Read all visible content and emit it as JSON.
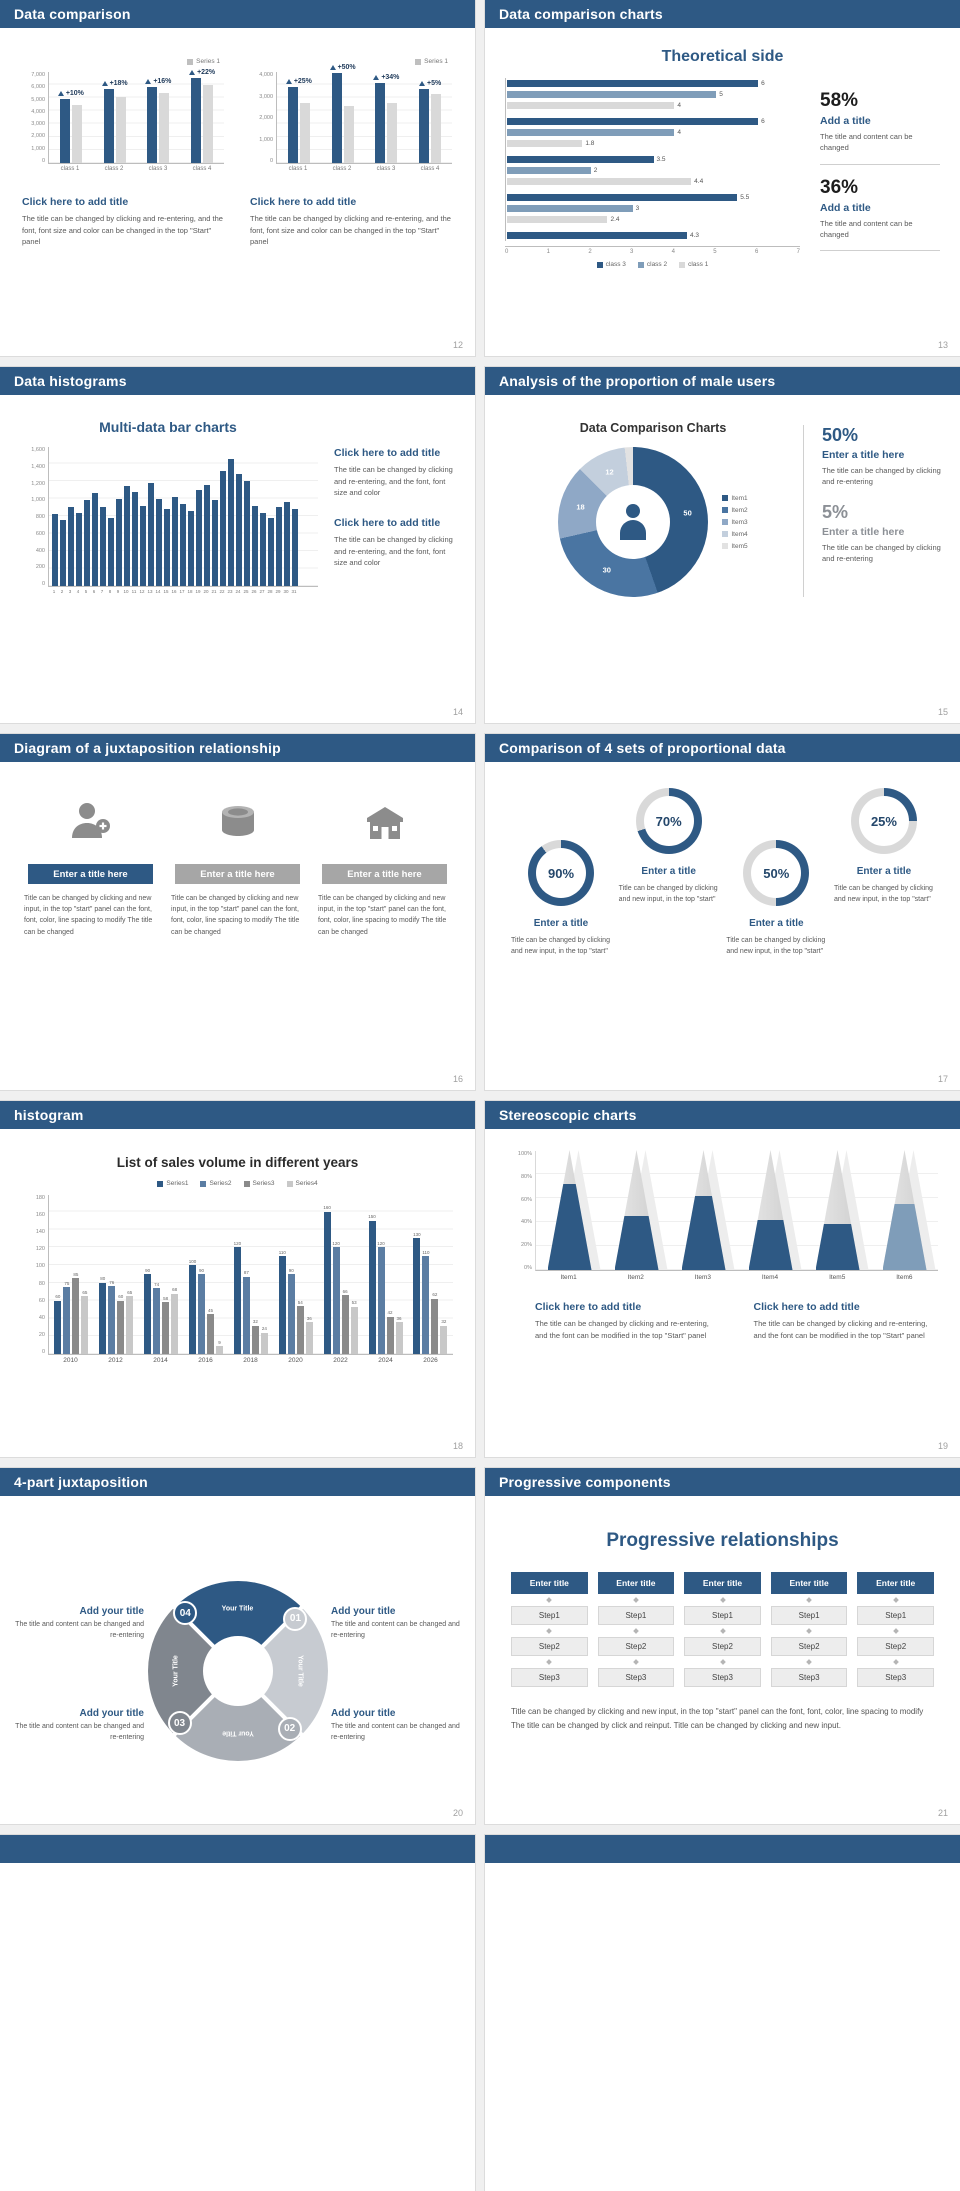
{
  "colors": {
    "navy": "#2e5984",
    "mid_blue": "#7f9db9",
    "gray_bar": "#d9d9d9"
  },
  "slides": {
    "s12": {
      "title": "Data comparison",
      "page_num": "12",
      "charts": [
        {
          "legend": "Series 1",
          "categories": [
            "class 1",
            "class 2",
            "class 3",
            "class 4"
          ],
          "pct_labels": [
            "+10%",
            "+18%",
            "+16%",
            "+22%"
          ],
          "ymax": 7000,
          "yticks": [
            "7,000",
            "6,000",
            "5,000",
            "4,000",
            "3,000",
            "2,000",
            "1,000",
            "0"
          ],
          "series": [
            {
              "name": "blue",
              "color": "#2e5984",
              "values": [
                4900,
                5600,
                5800,
                6500
              ]
            },
            {
              "name": "gray",
              "color": "#d9d9d9",
              "values": [
                4400,
                5000,
                5300,
                5900
              ]
            }
          ]
        },
        {
          "legend": "Series 1",
          "categories": [
            "class 1",
            "class 2",
            "class 3",
            "class 4"
          ],
          "pct_labels": [
            "+25%",
            "+50%",
            "+34%",
            "+5%"
          ],
          "ymax": 4000,
          "yticks": [
            "4,000",
            "3,000",
            "2,000",
            "1,000",
            "0"
          ],
          "series": [
            {
              "name": "blue",
              "color": "#2e5984",
              "values": [
                3300,
                3900,
                3500,
                3200
              ]
            },
            {
              "name": "gray",
              "color": "#d9d9d9",
              "values": [
                2600,
                2500,
                2600,
                3000
              ]
            }
          ]
        }
      ],
      "blocks": [
        {
          "heading": "Click here to add title",
          "body": "The title can be changed by clicking and re-entering, and the font, font size and color can be changed in the top \"Start\" panel"
        },
        {
          "heading": "Click here to add title",
          "body": "The title can be changed by clicking and re-entering, and the font, font size and color can be changed in the top \"Start\" panel"
        }
      ]
    },
    "s13": {
      "title": "Data comparison charts",
      "page_num": "13",
      "chart_title": "Theoretical side",
      "hbar": {
        "xmax": 7,
        "xticks": [
          "0",
          "1",
          "2",
          "3",
          "4",
          "5",
          "6",
          "7"
        ],
        "series_colors": [
          "#2e5984",
          "#7f9db9",
          "#d9d9d9"
        ],
        "groups": [
          {
            "values": [
              6,
              5,
              4
            ]
          },
          {
            "values": [
              6,
              4,
              1.8
            ]
          },
          {
            "values": [
              3.5,
              2,
              4.4
            ]
          },
          {
            "values": [
              5.5,
              3,
              2.4
            ]
          },
          {
            "values": [
              4.3
            ]
          }
        ],
        "legend": [
          {
            "label": "class 3",
            "color": "#2e5984"
          },
          {
            "label": "class 2",
            "color": "#7f9db9"
          },
          {
            "label": "class 1",
            "color": "#d9d9d9"
          }
        ]
      },
      "stats": [
        {
          "pct": "58%",
          "title": "Add a title",
          "body": "The title and content can be changed"
        },
        {
          "pct": "36%",
          "title": "Add a title",
          "body": "The title and content can be changed"
        }
      ]
    },
    "s14": {
      "title": "Data histograms",
      "page_num": "14",
      "chart_title": "Multi-data bar charts",
      "bar_color": "#2e5984",
      "ymax": 1600,
      "yticks": [
        "1,600",
        "1,400",
        "1,200",
        "1,000",
        "800",
        "600",
        "400",
        "200",
        "0"
      ],
      "values": [
        820,
        760,
        900,
        840,
        980,
        1060,
        900,
        780,
        1000,
        1140,
        1080,
        920,
        1180,
        1000,
        880,
        1020,
        940,
        860,
        1100,
        1160,
        980,
        1320,
        1450,
        1280,
        1200,
        920,
        840,
        780,
        900,
        960,
        880
      ],
      "xlabels": [
        "1",
        "2",
        "3",
        "4",
        "5",
        "6",
        "7",
        "8",
        "9",
        "10",
        "11",
        "12",
        "13",
        "14",
        "15",
        "16",
        "17",
        "18",
        "19",
        "20",
        "21",
        "22",
        "23",
        "24",
        "25",
        "26",
        "27",
        "28",
        "29",
        "30",
        "31"
      ],
      "blocks": [
        {
          "heading": "Click here to add title",
          "body": "The title can be changed by clicking and re-entering, and the font, font size and color"
        },
        {
          "heading": "Click here to add title",
          "body": "The title can be changed by clicking and re-entering, and the font, font size and color"
        }
      ]
    },
    "s15": {
      "title": "Analysis of the proportion of male users",
      "page_num": "15",
      "chart_title": "Data Comparison Charts",
      "donut": {
        "segments": [
          {
            "label": "Item1",
            "value": 50,
            "color": "#2e5984",
            "show": "50"
          },
          {
            "label": "Item2",
            "value": 30,
            "color": "#4a75a2",
            "show": "30"
          },
          {
            "label": "Item3",
            "value": 18,
            "color": "#8fa8c6",
            "show": "18"
          },
          {
            "label": "Item4",
            "value": 12,
            "color": "#c3cfdd",
            "show": "12"
          },
          {
            "label": "Item5",
            "value": 2,
            "color": "#e2e2e2",
            "show": ""
          }
        ]
      },
      "stats": [
        {
          "pct": "50%",
          "title": "Enter a title here",
          "body": "The title can be changed by clicking and re-entering",
          "color": "#2e5984"
        },
        {
          "pct": "5%",
          "title": "Enter a title here",
          "body": "The title can be changed by clicking and re-entering",
          "color": "#8c9096"
        }
      ]
    },
    "s16": {
      "title": "Diagram of a juxtaposition relationship",
      "page_num": "16",
      "items": [
        {
          "icon": "user-plus-icon",
          "bar_color": "#2e5984",
          "heading": "Enter a title here",
          "body": "Title can be changed by clicking and new input, in the top \"start\" panel can the font, font, color, line spacing to modify The title can be changed"
        },
        {
          "icon": "database-icon",
          "bar_color": "#a6a6a6",
          "heading": "Enter a title here",
          "body": "Title can be changed by clicking and new input, in the top \"start\" panel can the font, font, color, line spacing to modify The title can be changed"
        },
        {
          "icon": "building-icon",
          "bar_color": "#a6a6a6",
          "heading": "Enter a title here",
          "body": "Title can be changed by clicking and new input, in the top \"start\" panel can the font, font, color, line spacing to modify The title can be changed"
        }
      ]
    },
    "s17": {
      "title": "Comparison of 4 sets of proportional data",
      "page_num": "17",
      "ring_color": "#2e5984",
      "track_color": "#d9d9d9",
      "rings": [
        {
          "pct": 90,
          "label": "90%",
          "heading": "Enter a title",
          "body": "Title can be changed by clicking and new input, in the top \"start\"",
          "offset": "low"
        },
        {
          "pct": 70,
          "label": "70%",
          "heading": "Enter a title",
          "body": "Title can be changed by clicking and new input, in the top \"start\"",
          "offset": "high"
        },
        {
          "pct": 50,
          "label": "50%",
          "heading": "Enter a title",
          "body": "Title can be changed by clicking and new input, in the top \"start\"",
          "offset": "low"
        },
        {
          "pct": 25,
          "label": "25%",
          "heading": "Enter a title",
          "body": "Title can be changed by clicking and new input, in the top \"start\"",
          "offset": "high"
        }
      ]
    },
    "s18": {
      "title": "histogram",
      "page_num": "18",
      "chart_title": "List of sales volume in different years",
      "ymax": 180,
      "yticks": [
        "180",
        "160",
        "140",
        "120",
        "100",
        "80",
        "60",
        "40",
        "20",
        "0"
      ],
      "categories": [
        "2010",
        "2012",
        "2014",
        "2016",
        "2018",
        "2020",
        "2022",
        "2024",
        "2026"
      ],
      "series": [
        {
          "name": "Series1",
          "color": "#2e5984",
          "values": [
            60,
            80,
            90,
            100,
            120,
            110,
            160,
            150,
            130
          ]
        },
        {
          "name": "Series2",
          "color": "#5b7da3",
          "values": [
            75,
            76,
            74,
            90,
            87,
            90,
            120,
            120,
            110
          ]
        },
        {
          "name": "Series3",
          "color": "#8a8a8a",
          "values": [
            85,
            60,
            58,
            45,
            32,
            54,
            66,
            42,
            62
          ]
        },
        {
          "name": "Series4",
          "color": "#c8c8c8",
          "values": [
            65,
            65,
            68,
            9,
            24,
            36,
            53,
            36,
            32
          ]
        }
      ]
    },
    "s19": {
      "title": "Stereoscopic charts",
      "page_num": "19",
      "yticks": [
        "100%",
        "80%",
        "60%",
        "40%",
        "20%",
        "0%"
      ],
      "items": [
        "Item1",
        "Item2",
        "Item3",
        "Item4",
        "Item5",
        "Item6"
      ],
      "fills": [
        72,
        45,
        62,
        42,
        38,
        55
      ],
      "fill_colors": [
        "#2e5984",
        "#2e5984",
        "#2e5984",
        "#2e5984",
        "#2e5984",
        "#7f9db9"
      ],
      "blocks": [
        {
          "heading": "Click here to add title",
          "body": "The title can be changed by clicking and re-entering, and the font can be modified in the top \"Start\" panel"
        },
        {
          "heading": "Click here to add title",
          "body": "The title can be changed by clicking and re-entering, and the font can be modified in the top \"Start\" panel"
        }
      ]
    },
    "s20": {
      "title": "4-part juxtaposition",
      "page_num": "20",
      "wheel": {
        "segments": [
          {
            "num": "01",
            "label": "Your Title",
            "color": "#c7cbd1"
          },
          {
            "num": "02",
            "label": "Your Title",
            "color": "#a9aeb5"
          },
          {
            "num": "03",
            "label": "Your Title",
            "color": "#80868e"
          },
          {
            "num": "04",
            "label": "Your Title",
            "color": "#2e5984"
          }
        ]
      },
      "blocks": [
        {
          "title": "Add your title",
          "body": "The title and content can be changed and re-entering"
        },
        {
          "title": "Add your title",
          "body": "The title and content can be changed and re-entering"
        },
        {
          "title": "Add your title",
          "body": "The title and content can be changed and re-entering"
        },
        {
          "title": "Add your title",
          "body": "The title and content can be changed and re-entering"
        }
      ]
    },
    "s21": {
      "title": "Progressive components",
      "page_num": "21",
      "heading": "Progressive relationships",
      "columns": [
        {
          "button": "Enter title",
          "steps": [
            "Step1",
            "Step2",
            "Step3"
          ]
        },
        {
          "button": "Enter title",
          "steps": [
            "Step1",
            "Step2",
            "Step3"
          ]
        },
        {
          "button": "Enter title",
          "steps": [
            "Step1",
            "Step2",
            "Step3"
          ]
        },
        {
          "button": "Enter title",
          "steps": [
            "Step1",
            "Step2",
            "Step3"
          ]
        },
        {
          "button": "Enter title",
          "steps": [
            "Step1",
            "Step2",
            "Step3"
          ]
        }
      ],
      "body": "Title can be changed by clicking and new input, in the top \"start\" panel can the font, font, color, line spacing to modify The title can be changed by click and reinput. Title can be changed by clicking and new input."
    },
    "partials": {
      "left_title": "",
      "right_title": ""
    }
  }
}
